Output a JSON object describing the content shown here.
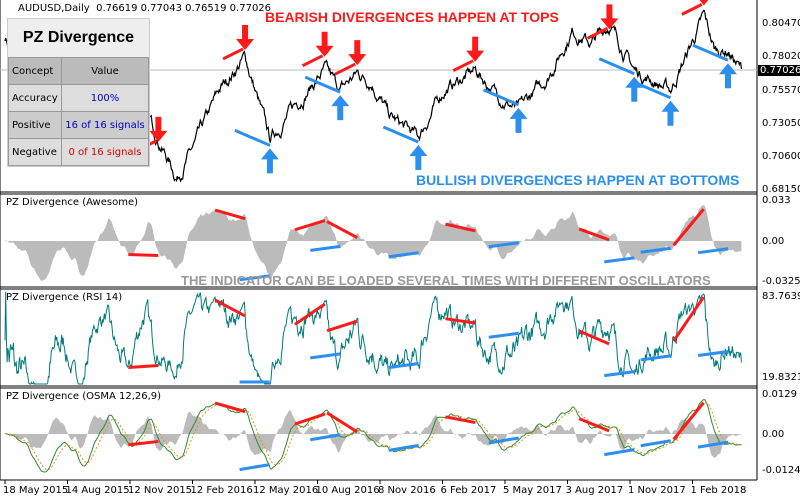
{
  "header": {
    "symbol": "AUDUSD,Daily",
    "ohlc": "0.76619 0.77043 0.76519 0.77026"
  },
  "panel": {
    "title": "PZ Divergence",
    "col1": "Concept",
    "col2": "Value",
    "rows": [
      {
        "concept": "Accuracy",
        "value": "100%",
        "color": "#0000cc"
      },
      {
        "concept": "Positive",
        "value": "16 of 16 signals",
        "color": "#0000cc"
      },
      {
        "concept": "Negative",
        "value": "0 of 16 signals",
        "color": "#dd0000"
      }
    ]
  },
  "annotations": {
    "bearish": "BEARISH DIVERGENCES HAPPEN AT TOPS",
    "bullish": "BULLISH DIVERGENCES HAPPEN AT BOTTOMS",
    "multi": "THE INDICATOR CAN BE LOADED SEVERAL TIMES WITH DIFFERENT OSCILLATORS"
  },
  "colors": {
    "bearish": "#ff1a1a",
    "bullish": "#2b8ff0",
    "price": "#000000",
    "oscillator": "#bbbbbb",
    "rsi": "#007b7b",
    "osma_main": "#2e8b2e",
    "osma_signal": "#e09020"
  },
  "chart_data": {
    "type": "line",
    "price": {
      "title": "AUDUSD,Daily",
      "current": "0.77026",
      "yticks": [
        "0.80470",
        "0.78020",
        "0.75570",
        "0.73050",
        "0.70600",
        "0.68150"
      ],
      "ylim": [
        0.6815,
        0.8047
      ],
      "points": [
        [
          "2015-05-18",
          0.795
        ],
        [
          "2015-06-15",
          0.775
        ],
        [
          "2015-07-10",
          0.735
        ],
        [
          "2015-08-10",
          0.74
        ],
        [
          "2015-09-05",
          0.7
        ],
        [
          "2015-10-10",
          0.735
        ],
        [
          "2015-11-10",
          0.708
        ],
        [
          "2015-12-05",
          0.735
        ],
        [
          "2016-01-15",
          0.69
        ],
        [
          "2016-02-10",
          0.715
        ],
        [
          "2016-03-15",
          0.755
        ],
        [
          "2016-04-20",
          0.78
        ],
        [
          "2016-05-25",
          0.718
        ],
        [
          "2016-07-01",
          0.745
        ],
        [
          "2016-08-10",
          0.77
        ],
        [
          "2016-09-01",
          0.755
        ],
        [
          "2016-09-25",
          0.768
        ],
        [
          "2016-10-15",
          0.762
        ],
        [
          "2016-11-10",
          0.735
        ],
        [
          "2016-12-20",
          0.72
        ],
        [
          "2017-01-25",
          0.755
        ],
        [
          "2017-03-10",
          0.77
        ],
        [
          "2017-04-10",
          0.752
        ],
        [
          "2017-05-10",
          0.74
        ],
        [
          "2017-06-20",
          0.765
        ],
        [
          "2017-07-25",
          0.8
        ],
        [
          "2017-08-20",
          0.79
        ],
        [
          "2017-09-15",
          0.805
        ],
        [
          "2017-10-20",
          0.77
        ],
        [
          "2017-12-10",
          0.755
        ],
        [
          "2018-01-26",
          0.81
        ],
        [
          "2018-02-10",
          0.785
        ],
        [
          "2018-03-01",
          0.785
        ],
        [
          "2018-03-20",
          0.77
        ]
      ],
      "bearish_arrows": [
        "2015-12-20",
        "2016-04-20",
        "2016-08-10",
        "2016-09-25",
        "2017-03-10",
        "2017-09-15",
        "2018-01-26"
      ],
      "bullish_arrows": [
        "2016-05-25",
        "2016-09-01",
        "2016-12-20",
        "2017-05-10",
        "2017-10-20",
        "2017-12-10",
        "2018-03-01"
      ]
    },
    "xticks": [
      "18 May 2015",
      "14 Aug 2015",
      "12 Nov 2015",
      "12 Feb 2016",
      "12 May 2016",
      "10 Aug 2016",
      "8 Nov 2016",
      "6 Feb 2017",
      "5 May 2017",
      "3 Aug 2017",
      "1 Nov 2017",
      "1 Feb 2018"
    ],
    "subcharts": [
      {
        "title": "PZ Divergence (Awesome)",
        "yticks": [
          "0.033",
          "0.00",
          "-0.0325"
        ]
      },
      {
        "title": "PZ Divergence (RSI 14)",
        "yticks": [
          "83.7639",
          "19.8321"
        ]
      },
      {
        "title": "PZ Divergence (OSMA 12,26,9)",
        "yticks": [
          "0.0129",
          "0.00",
          "-0.0124"
        ]
      }
    ]
  }
}
